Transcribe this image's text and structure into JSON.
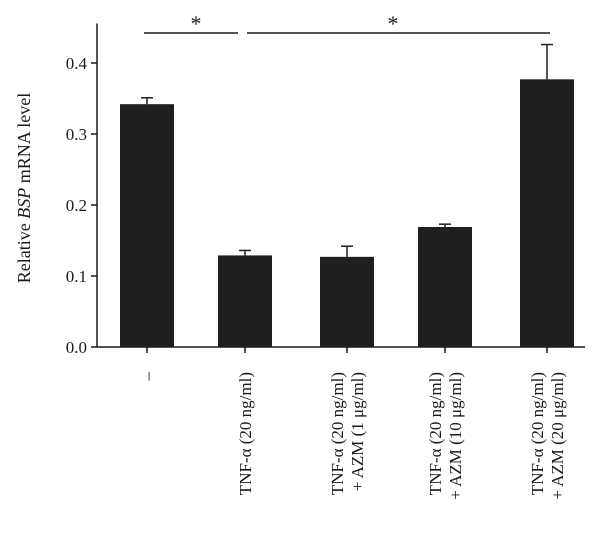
{
  "chart_data": {
    "type": "bar",
    "title": "",
    "xlabel": "",
    "ylabel": {
      "prefix": "Relative ",
      "italic": "BSP",
      "suffix": " mRNA level"
    },
    "ylim": [
      0.0,
      0.45
    ],
    "yticks": [
      "0.0",
      "0.1",
      "0.2",
      "0.3",
      "0.4"
    ],
    "grid": false,
    "categories": [
      {
        "line1": "–",
        "line2": ""
      },
      {
        "line1": "TNF-α (20 ng/ml)",
        "line2": ""
      },
      {
        "line1": "TNF-α (20 ng/ml)",
        "line2": "+ AZM (1 μg/ml)"
      },
      {
        "line1": "TNF-α (20 ng/ml)",
        "line2": "+ AZM (10 μg/ml)"
      },
      {
        "line1": "TNF-α (20 ng/ml)",
        "line2": "+ AZM (20 μg/ml)"
      }
    ],
    "values": [
      0.342,
      0.129,
      0.127,
      0.169,
      0.377
    ],
    "errors": [
      0.009,
      0.007,
      0.015,
      0.004,
      0.049
    ],
    "bar_color": "#1f1f1f",
    "significance": [
      {
        "from": 0,
        "to": 1,
        "label": "*"
      },
      {
        "from": 1,
        "to": 4,
        "label": "*"
      }
    ]
  }
}
